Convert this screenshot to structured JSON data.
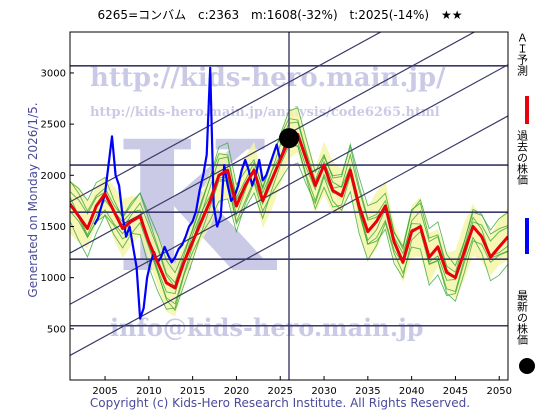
{
  "header": {
    "stock": "6265=コンバム",
    "current": "c:2363",
    "mid": "m:1608(-32%)",
    "target": "t:2025(-14%)",
    "stars": "★★"
  },
  "side_label": "Generated on Monday 2026/1/5.",
  "copyright": "Copyright (c) Kids-Hero Research Institute. All Rights Reserved.",
  "watermarks": {
    "url_main": "http://kids-hero.main.jp/",
    "url_analysis": "http://kids-hero.main.jp/analysis/code6265.html",
    "email": "info@kids-hero.main.jp"
  },
  "legend": [
    {
      "label": "ＡＩ予測",
      "color": "#e8000b",
      "marker": "line"
    },
    {
      "label": "過去の株価",
      "color": "#0000ff",
      "marker": "line"
    },
    {
      "label": "最新の株価",
      "color": "#000000",
      "marker": "dot"
    }
  ],
  "chart_data": {
    "type": "line",
    "xlim": [
      2001,
      2051
    ],
    "ylim": [
      0,
      3400
    ],
    "x_ticks": [
      2005,
      2010,
      2015,
      2020,
      2025,
      2030,
      2035,
      2040,
      2045,
      2050
    ],
    "y_ticks": [
      500,
      1000,
      1500,
      2000,
      2500,
      3000
    ],
    "horizontal_levels": [
      530,
      1180,
      1640,
      2100,
      3070
    ],
    "current_marker": {
      "x": 2026,
      "y": 2363
    },
    "current_vline_x": 2026,
    "trend_channels": [
      {
        "x": [
          2001,
          2051
        ],
        "y": [
          240,
          2580
        ]
      },
      {
        "x": [
          2001,
          2051
        ],
        "y": [
          740,
          3080
        ]
      },
      {
        "x": [
          2001,
          2051
        ],
        "y": [
          1240,
          3580
        ]
      },
      {
        "x": [
          2001,
          2051
        ],
        "y": [
          1740,
          4080
        ]
      }
    ],
    "series": [
      {
        "name": "過去の株価",
        "color": "#0000ff",
        "x": [
          2003.8,
          2004.2,
          2004.6,
          2005.0,
          2005.4,
          2005.8,
          2006.2,
          2006.6,
          2007.0,
          2007.4,
          2007.8,
          2008.2,
          2008.6,
          2009.0,
          2009.4,
          2009.8,
          2010.2,
          2010.6,
          2011.0,
          2011.4,
          2011.8,
          2012.2,
          2012.6,
          2013.0,
          2013.4,
          2013.8,
          2014.2,
          2014.6,
          2015.0,
          2015.4,
          2015.8,
          2016.2,
          2016.6,
          2017.0,
          2017.4,
          2017.8,
          2018.2,
          2018.6,
          2019.0,
          2019.4,
          2019.8,
          2020.2,
          2020.6,
          2021.0,
          2021.4,
          2021.8,
          2022.2,
          2022.6,
          2023.0,
          2023.4,
          2023.8,
          2024.2,
          2024.6,
          2025.0,
          2025.4,
          2025.8
        ],
        "y": [
          1520,
          1580,
          1700,
          1820,
          2100,
          2380,
          2000,
          1900,
          1600,
          1400,
          1500,
          1300,
          1100,
          600,
          700,
          1000,
          1150,
          1250,
          1150,
          1200,
          1300,
          1220,
          1150,
          1200,
          1280,
          1320,
          1400,
          1500,
          1550,
          1650,
          1850,
          2000,
          2200,
          3050,
          1700,
          1500,
          1600,
          2100,
          1900,
          1750,
          1800,
          1900,
          2050,
          2150,
          2050,
          1900,
          2000,
          2150,
          1950,
          2000,
          2100,
          2200,
          2300,
          2150,
          2250,
          2363
        ]
      },
      {
        "name": "ＡＩ予測",
        "color": "#e8000b",
        "x": [
          2001,
          2002,
          2003,
          2004,
          2005,
          2006,
          2007,
          2008,
          2009,
          2010,
          2011,
          2012,
          2013,
          2014,
          2015,
          2016,
          2017,
          2018,
          2019,
          2020,
          2021,
          2022,
          2023,
          2024,
          2025,
          2026,
          2027,
          2028,
          2029,
          2030,
          2031,
          2032,
          2033,
          2034,
          2035,
          2036,
          2037,
          2038,
          2039,
          2040,
          2041,
          2042,
          2043,
          2044,
          2045,
          2046,
          2047,
          2048,
          2049,
          2050,
          2051
        ],
        "y": [
          1720,
          1600,
          1480,
          1700,
          1820,
          1650,
          1480,
          1550,
          1600,
          1350,
          1150,
          950,
          900,
          1150,
          1350,
          1550,
          1750,
          2000,
          2050,
          1700,
          1900,
          2050,
          1750,
          1950,
          2150,
          2350,
          2400,
          2150,
          1900,
          2100,
          1850,
          1800,
          2050,
          1700,
          1450,
          1550,
          1700,
          1350,
          1150,
          1450,
          1500,
          1200,
          1300,
          1050,
          1000,
          1250,
          1500,
          1400,
          1200,
          1300,
          1400
        ]
      }
    ]
  }
}
